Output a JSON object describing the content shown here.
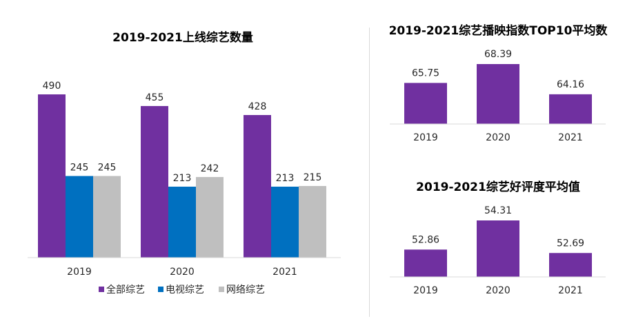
{
  "chart_data": [
    {
      "type": "bar",
      "title": "2019-2021上线综艺数量",
      "categories": [
        "2019",
        "2020",
        "2021"
      ],
      "series": [
        {
          "name": "全部综艺",
          "values": [
            490,
            455,
            428
          ],
          "color": "#7030a0"
        },
        {
          "name": "电视综艺",
          "values": [
            245,
            213,
            213
          ],
          "color": "#0070c0"
        },
        {
          "name": "网络综艺",
          "values": [
            245,
            242,
            215
          ],
          "color": "#bfbfbf"
        }
      ],
      "ylim": [
        0,
        520
      ],
      "grid": false,
      "legend": "bottom"
    },
    {
      "type": "bar",
      "title": "2019-2021综艺播映指数TOP10平均数",
      "categories": [
        "2019",
        "2020",
        "2021"
      ],
      "values": [
        65.75,
        68.39,
        64.16
      ],
      "labels": [
        "65.75",
        "68.39",
        "64.16"
      ],
      "color": "#7030a0",
      "ylim": [
        60,
        70
      ],
      "grid": false
    },
    {
      "type": "bar",
      "title": "2019-2021综艺好评度平均值",
      "categories": [
        "2019",
        "2020",
        "2021"
      ],
      "values": [
        52.86,
        54.31,
        52.69
      ],
      "labels": [
        "52.86",
        "54.31",
        "52.69"
      ],
      "color": "#7030a0",
      "ylim": [
        51.5,
        54.5
      ],
      "grid": false
    }
  ]
}
